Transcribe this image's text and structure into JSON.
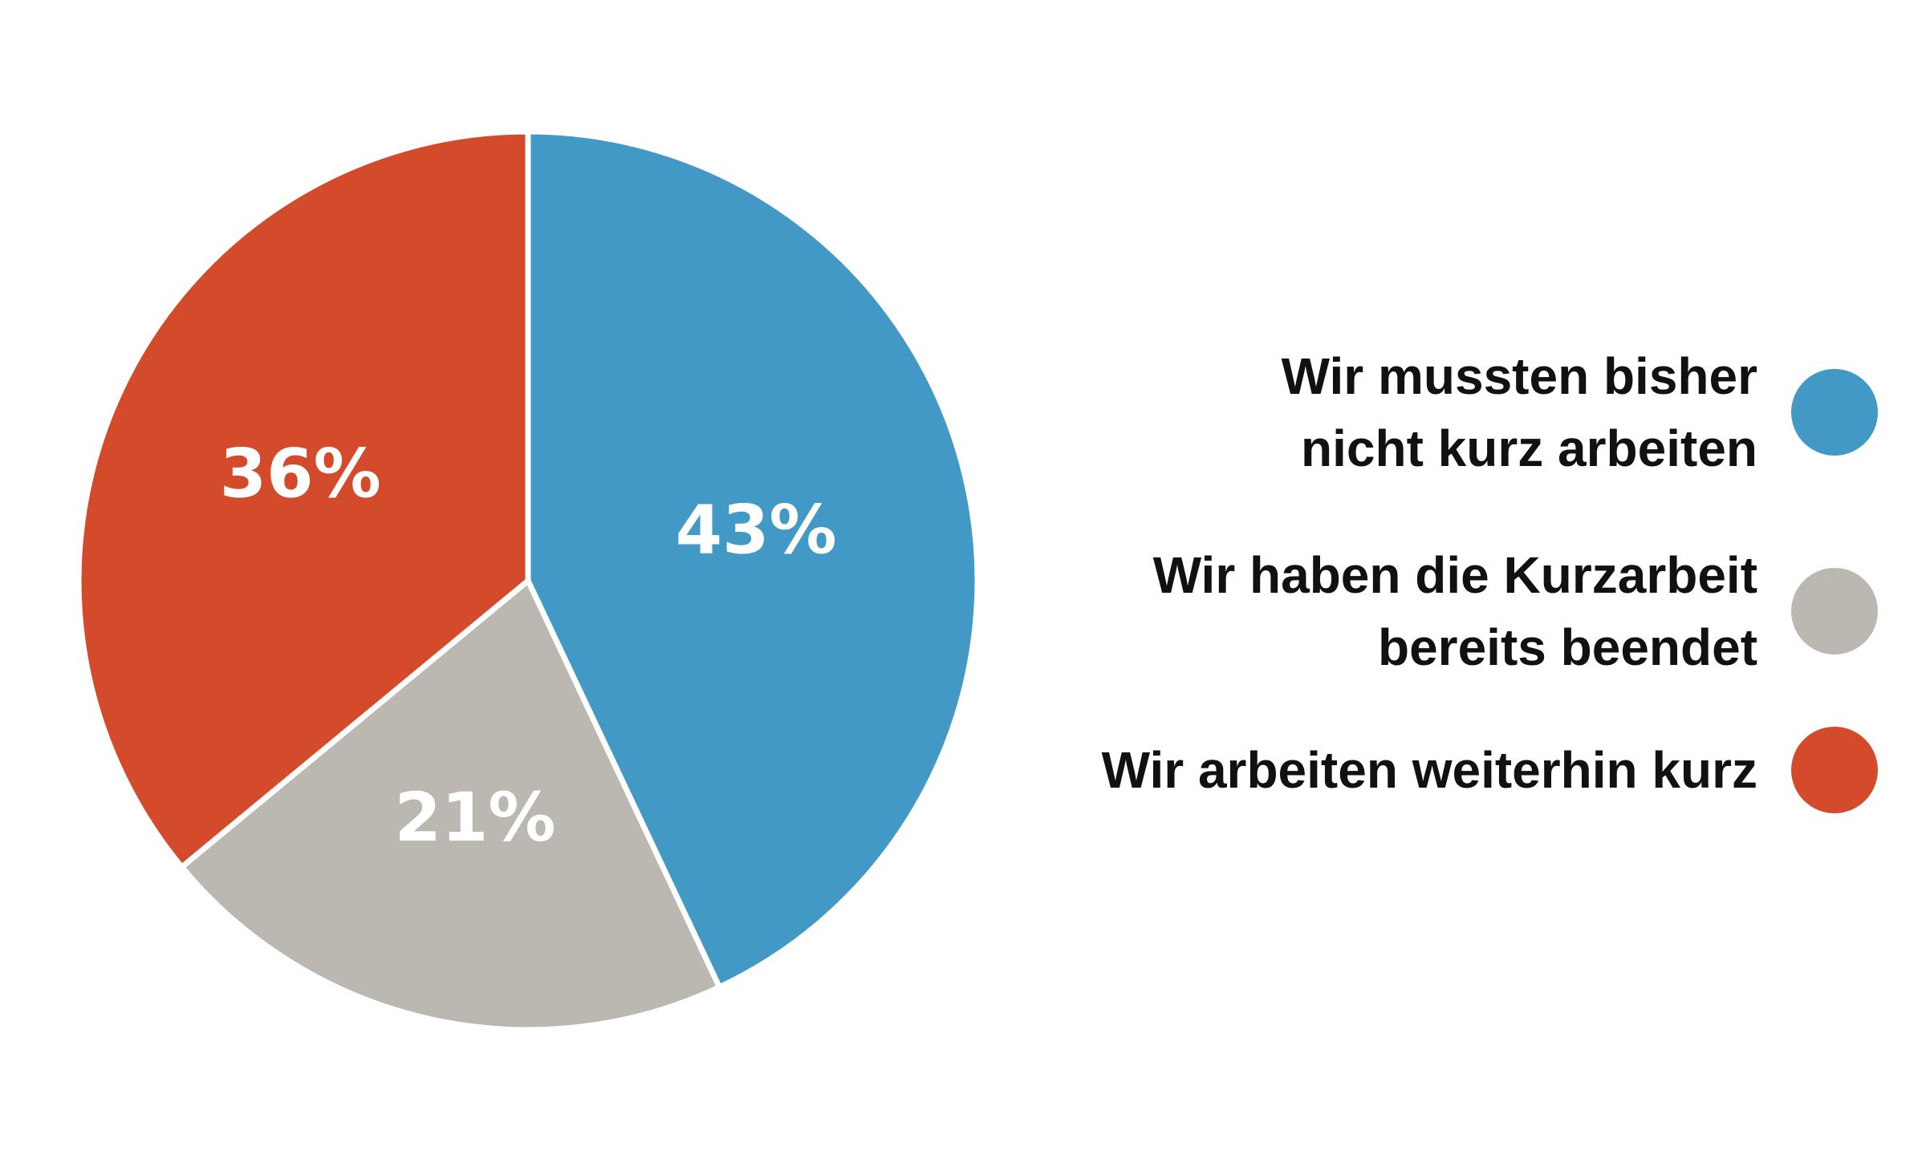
{
  "chart_data": {
    "type": "pie",
    "slices": [
      {
        "label": "Wir mussten bisher\nnicht kurz arbeiten",
        "value": 43,
        "value_label": "43%",
        "color": "#4399c5"
      },
      {
        "label": "Wir haben die Kurzarbeit\nbereits beendet",
        "value": 21,
        "value_label": "21%",
        "color": "#bbb8b1"
      },
      {
        "label": "Wir arbeiten weiterhin kurz",
        "value": 36,
        "value_label": "36%",
        "color": "#d44b2b"
      }
    ],
    "start_angle": "12 o'clock",
    "direction": "clockwise",
    "legend_position": "right",
    "separator_color": "#ffffff"
  }
}
